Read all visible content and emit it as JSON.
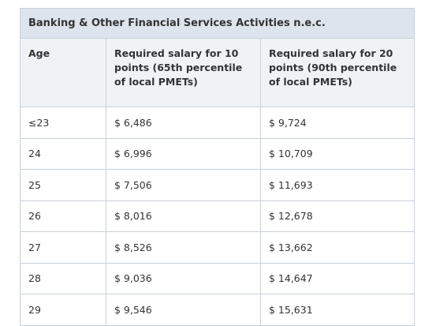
{
  "table": {
    "title": "Banking & Other Financial Services Activities n.e.c.",
    "columns": [
      "Age",
      "Required salary for 10 points (65th percentile of local PMETs)",
      "Required salary for 20 points (90th percentile of local PMETs)"
    ],
    "rows": [
      [
        "≤23",
        "$ 6,486",
        "$ 9,724"
      ],
      [
        "24",
        "$ 6,996",
        "$ 10,709"
      ],
      [
        "25",
        "$ 7,506",
        "$ 11,693"
      ],
      [
        "26",
        "$ 8,016",
        "$ 12,678"
      ],
      [
        "27",
        "$ 8,526",
        "$ 13,662"
      ],
      [
        "28",
        "$ 9,036",
        "$ 14,647"
      ],
      [
        "29",
        "$ 9,546",
        "$ 15,631"
      ]
    ]
  }
}
